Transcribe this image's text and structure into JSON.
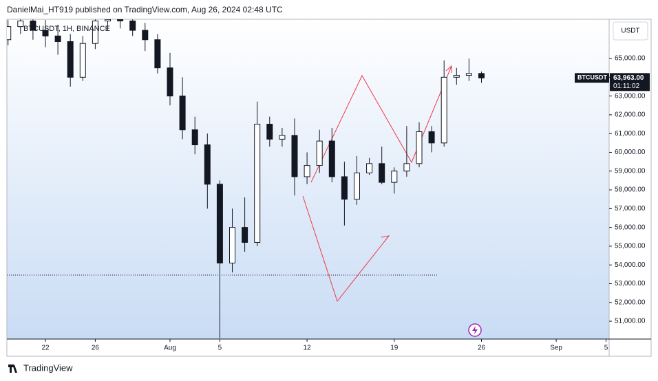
{
  "header": {
    "publisher": "DanielMai_HT919 published on TradingView.com, Aug 26, 2024 02:48 UTC",
    "symbol": "BTCUSDT, 1H, BINANCE",
    "currency": "USDT"
  },
  "chart_data": {
    "type": "candlestick",
    "categories": [
      null,
      null,
      null,
      "22",
      null,
      null,
      null,
      "26",
      null,
      null,
      null,
      null,
      null,
      "Aug",
      null,
      null,
      null,
      "5",
      null,
      null,
      null,
      null,
      null,
      null,
      "12",
      null,
      null,
      null,
      null,
      null,
      null,
      "19",
      null,
      null,
      null,
      null,
      null,
      null,
      "26",
      null,
      null,
      null,
      null,
      null,
      "Sep",
      null,
      null,
      null,
      "5"
    ],
    "open": [
      66000,
      66700,
      67000,
      66500,
      66200,
      65900,
      64000,
      65800,
      67000,
      67100,
      67000,
      66500,
      66000,
      64500,
      63000,
      61200,
      60400,
      58300,
      54100,
      56000,
      55200,
      61500,
      60700,
      60900,
      58700,
      59300,
      60600,
      58700,
      57500,
      58900,
      59400,
      58400,
      59000,
      59400,
      61100,
      60500,
      64000,
      64100,
      64200,
      null,
      null,
      null,
      null,
      null,
      null,
      null,
      null,
      null,
      null
    ],
    "high": [
      67050,
      67080,
      67080,
      67050,
      66800,
      66300,
      66200,
      67080,
      67080,
      67080,
      67080,
      66900,
      66300,
      65300,
      64000,
      61900,
      61000,
      58500,
      57000,
      57600,
      62700,
      61900,
      61300,
      61800,
      60000,
      61200,
      61300,
      59500,
      59800,
      59700,
      60300,
      59200,
      61400,
      61600,
      61400,
      64900,
      64500,
      65000,
      64300,
      null,
      null,
      null,
      null,
      null,
      null,
      null,
      null,
      null,
      null
    ],
    "low": [
      65700,
      66300,
      66000,
      65600,
      65200,
      63500,
      63800,
      65500,
      66500,
      66600,
      66200,
      65400,
      64200,
      62500,
      60700,
      59900,
      57000,
      50100,
      53600,
      54700,
      55000,
      60300,
      60300,
      57700,
      58300,
      58900,
      58400,
      56100,
      57200,
      58800,
      58300,
      57800,
      58700,
      59200,
      60000,
      60300,
      63600,
      63800,
      63700,
      null,
      null,
      null,
      null,
      null,
      null,
      null,
      null,
      null,
      null
    ],
    "close": [
      66700,
      67000,
      66500,
      66200,
      65900,
      64000,
      65800,
      67000,
      67080,
      67000,
      66500,
      66000,
      64500,
      63000,
      61200,
      60400,
      58300,
      54100,
      56000,
      55200,
      61500,
      60700,
      60900,
      58700,
      59300,
      60600,
      58700,
      57500,
      58900,
      59400,
      58400,
      59000,
      59400,
      61100,
      60500,
      64000,
      64100,
      64200,
      63963,
      null,
      null,
      null,
      null,
      null,
      null,
      null,
      null,
      null,
      null
    ],
    "up_color": "#ffffff",
    "down_color": "#131722",
    "wick_color": "#131722",
    "ylim": [
      50050,
      67090
    ],
    "yticks": [
      {
        "value": 51000,
        "label": "51,000.00"
      },
      {
        "value": 52000,
        "label": "52,000.00"
      },
      {
        "value": 53000,
        "label": "53,000.00"
      },
      {
        "value": 54000,
        "label": "54,000.00"
      },
      {
        "value": 55000,
        "label": "55,000.00"
      },
      {
        "value": 56000,
        "label": "56,000.00"
      },
      {
        "value": 57000,
        "label": "57,000.00"
      },
      {
        "value": 58000,
        "label": "58,000.00"
      },
      {
        "value": 59000,
        "label": "59,000.00"
      },
      {
        "value": 60000,
        "label": "60,000.00"
      },
      {
        "value": 61000,
        "label": "61,000.00"
      },
      {
        "value": 62000,
        "label": "62,000.00"
      },
      {
        "value": 63000,
        "label": "63,000.00"
      },
      {
        "value": 64000,
        "label": "64,000.00"
      },
      {
        "value": 65000,
        "label": "65,000.00"
      }
    ],
    "last_price": {
      "symbol": "BTCUSDT",
      "value": 63963,
      "label": "63,963.00",
      "countdown": "01:11:02"
    }
  },
  "footer": {
    "brand": "TradingView"
  }
}
